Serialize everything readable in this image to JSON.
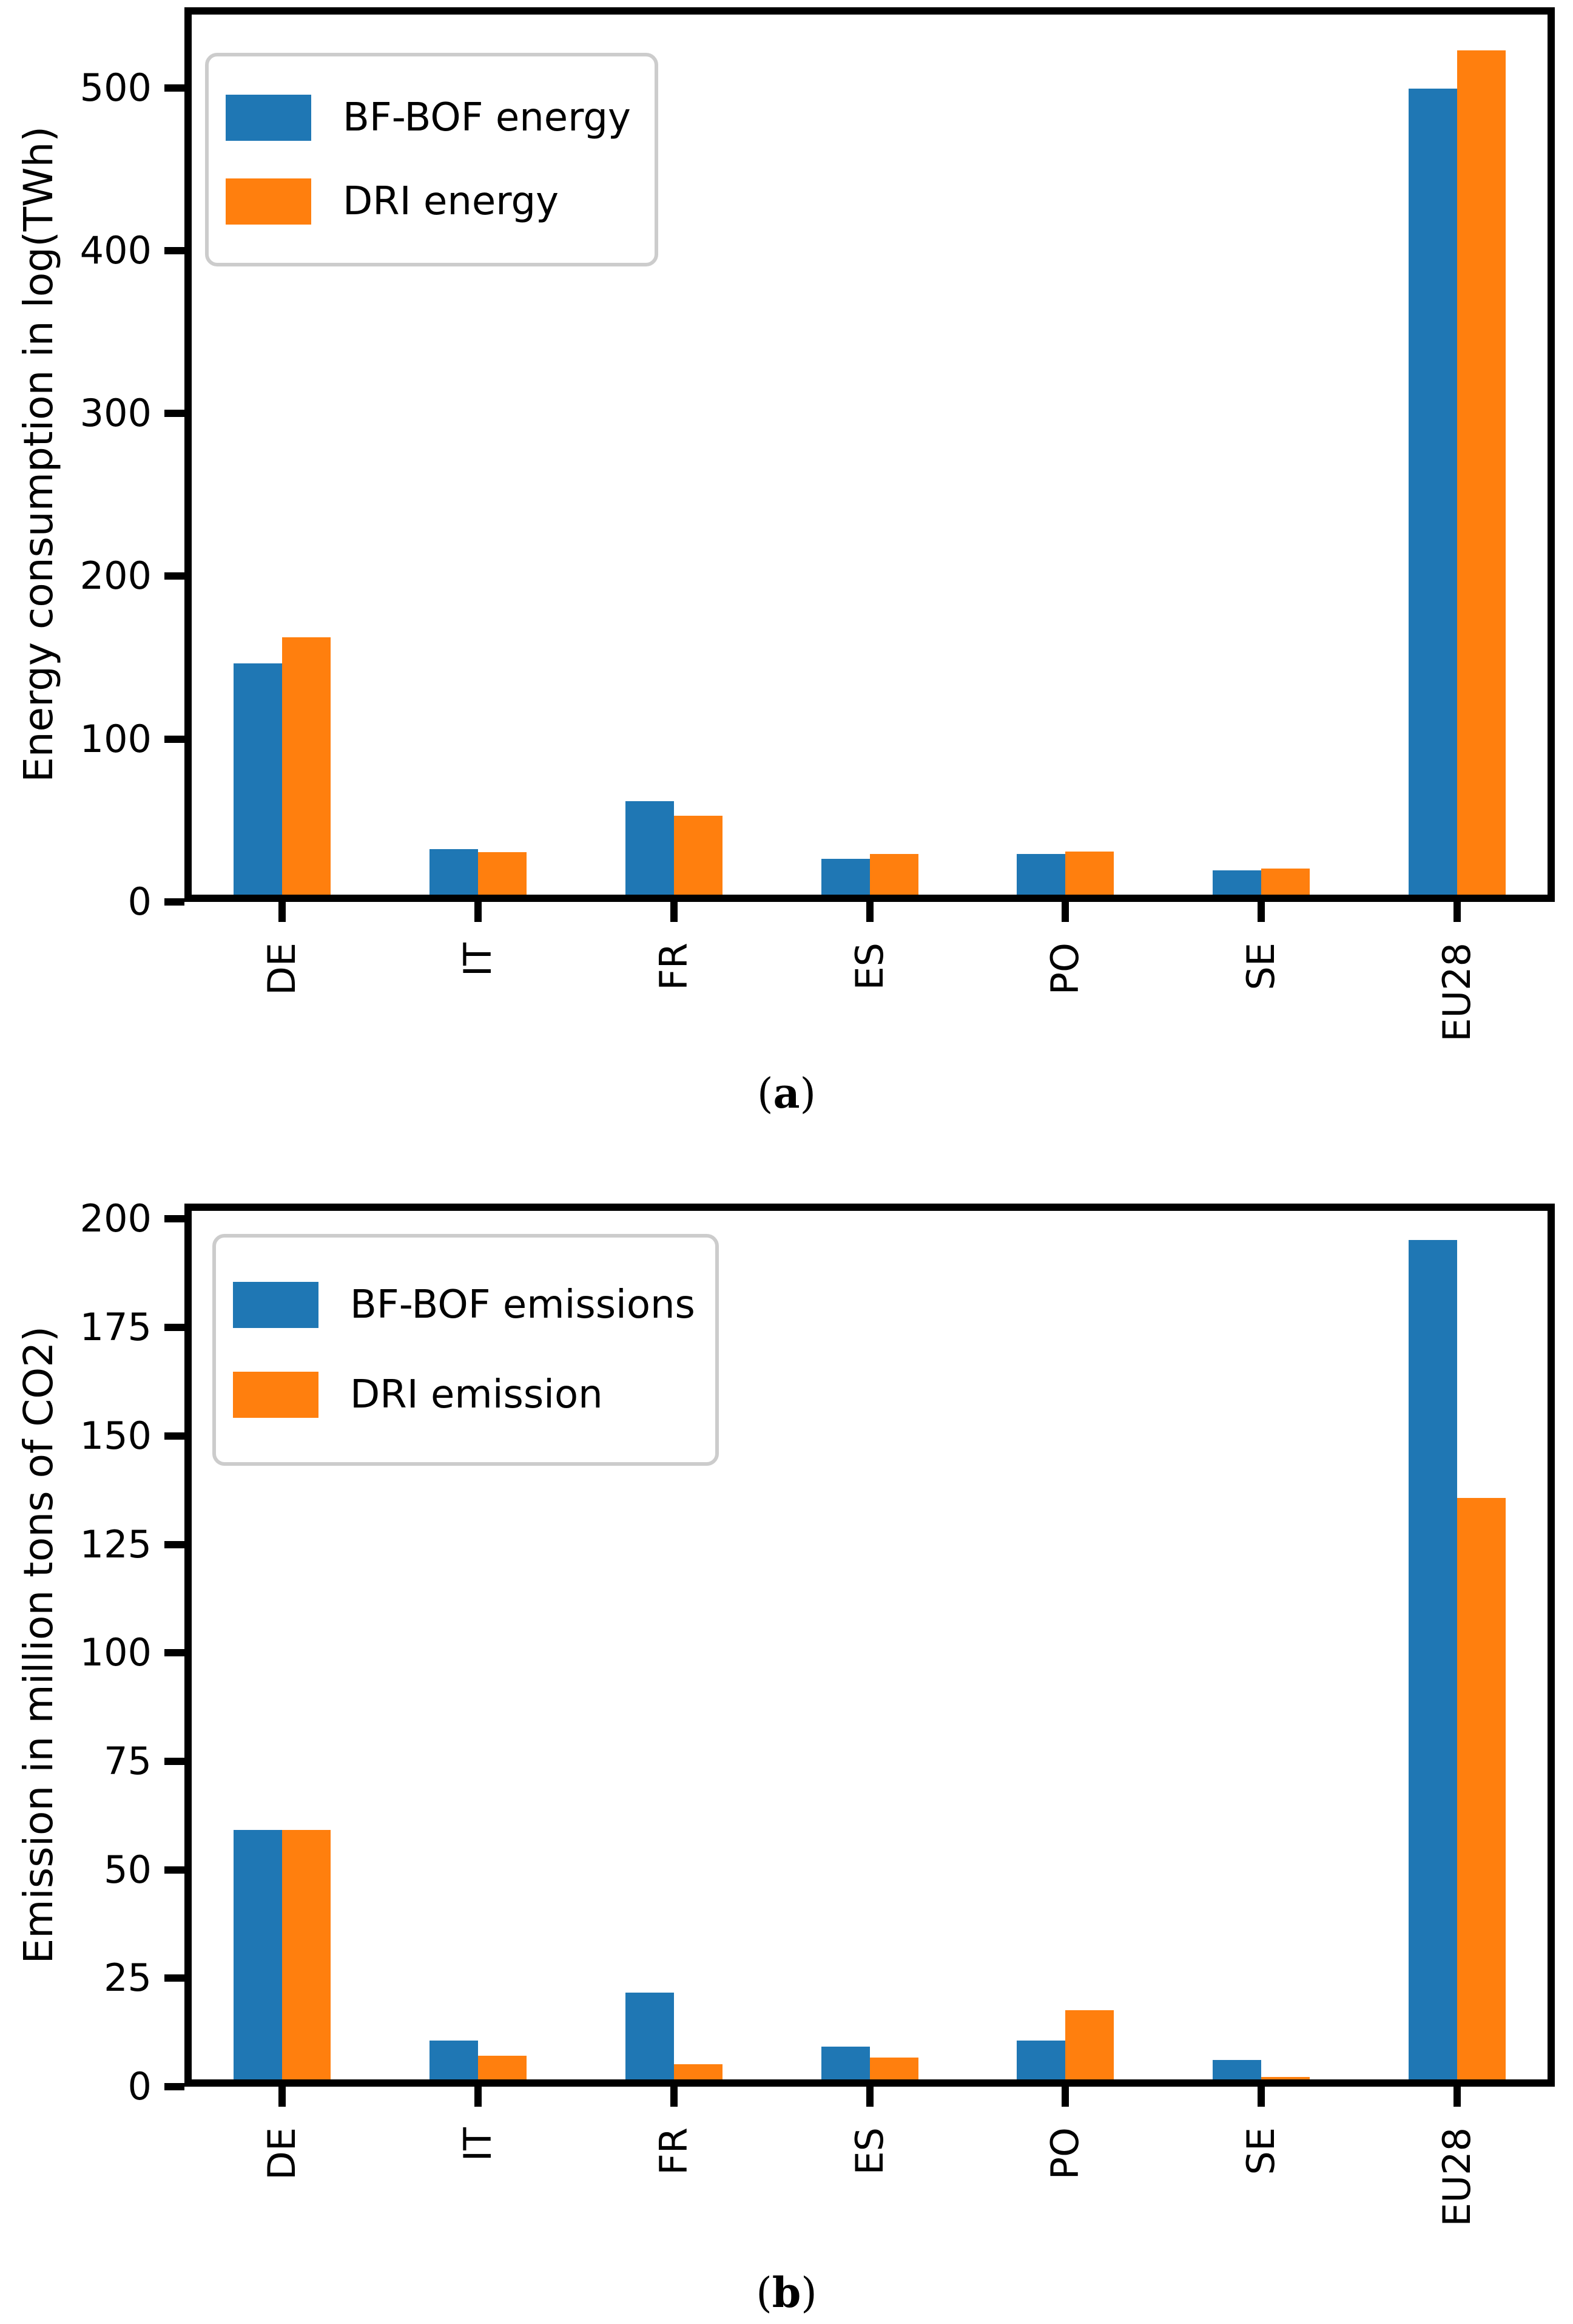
{
  "figure": {
    "background": "#ffffff"
  },
  "colors": {
    "bfbof_blue": "#1f77b4",
    "dri_orange": "#ff7f0e",
    "axis": "#000000",
    "legend_border": "#cccccc"
  },
  "chart_data": [
    {
      "id": "a",
      "type": "bar",
      "caption_pre": "(",
      "caption_letter": "a",
      "caption_post": ")",
      "ylabel": "Energy consumption in log(TWh)",
      "xlabel": "",
      "categories": [
        "DE",
        "IT",
        "FR",
        "ES",
        "PO",
        "SE",
        "EU28"
      ],
      "yticks": [
        0,
        100,
        200,
        300,
        400,
        500
      ],
      "ylim": [
        0,
        540
      ],
      "grid": false,
      "legend_position": "upper left",
      "series": [
        {
          "name": "BF-BOF energy",
          "color": "#1f77b4",
          "values": [
            142,
            28,
            57.5,
            22,
            25,
            15,
            495
          ]
        },
        {
          "name": "DRI energy",
          "color": "#ff7f0e",
          "values": [
            158,
            26,
            48.5,
            25,
            26.5,
            16,
            518.5
          ]
        }
      ]
    },
    {
      "id": "b",
      "type": "bar",
      "caption_pre": "(",
      "caption_letter": "b",
      "caption_post": ")",
      "ylabel": "Emission in million tons of CO2)",
      "xlabel": "",
      "categories": [
        "DE",
        "IT",
        "FR",
        "ES",
        "PO",
        "SE",
        "EU28"
      ],
      "yticks": [
        0,
        25,
        50,
        75,
        100,
        125,
        150,
        175,
        200
      ],
      "ylim": [
        0,
        200
      ],
      "grid": false,
      "legend_position": "upper left",
      "series": [
        {
          "name": "BF-BOF emissions",
          "color": "#1f77b4",
          "values": [
            57.5,
            9,
            20,
            7.5,
            9,
            4.5,
            193.5
          ]
        },
        {
          "name": "DRI emission",
          "color": "#ff7f0e",
          "values": [
            57.5,
            5.5,
            3.5,
            5,
            16,
            0.5,
            134
          ]
        }
      ]
    }
  ]
}
